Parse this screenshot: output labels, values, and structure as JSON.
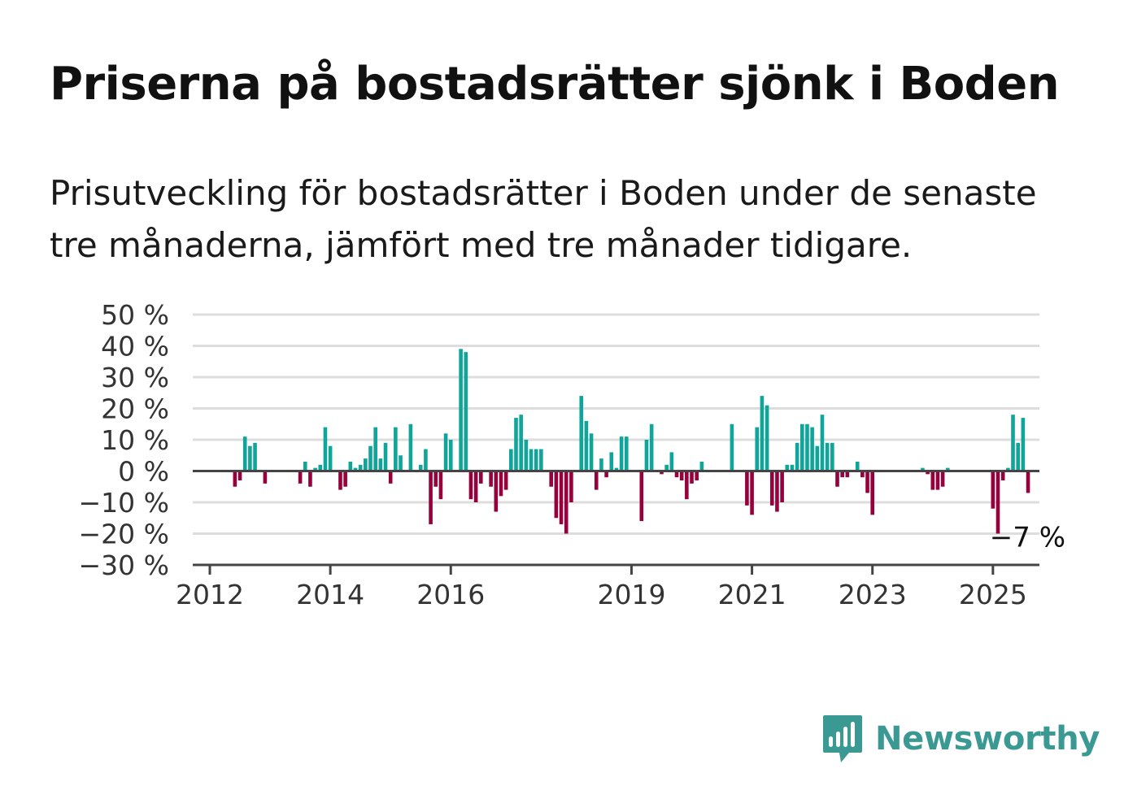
{
  "header": {
    "title": "Priserna på bostadsrätter sjönk i Boden",
    "subtitle": "Prisutveckling för bostadsrätter i Boden under de senaste tre månaderna, jämfört med tre månader tidigare."
  },
  "branding": {
    "name": "Newsworthy",
    "icon": "newsworthy-logo-icon",
    "color": "#3a9a93"
  },
  "colors": {
    "positive": "#0fa59a",
    "negative": "#96003c",
    "grid": "#dddddd",
    "axis": "#444444"
  },
  "chart_data": {
    "type": "bar",
    "title": "",
    "xlabel": "",
    "ylabel": "",
    "ylim": [
      -30,
      50
    ],
    "y_ticks": [
      "50 %",
      "40 %",
      "30 %",
      "20 %",
      "10 %",
      "0 %",
      "−10 %",
      "−20 %",
      "−30 %"
    ],
    "y_tick_values": [
      50,
      40,
      30,
      20,
      10,
      0,
      -10,
      -20,
      -30
    ],
    "x_ticks": [
      "2012",
      "2014",
      "2016",
      "2019",
      "2021",
      "2023",
      "2025"
    ],
    "x_tick_values": [
      "2012-01",
      "2014-01",
      "2016-01",
      "2019-01",
      "2021-01",
      "2023-01",
      "2025-01"
    ],
    "grid": true,
    "annotation": {
      "text": "−7 %",
      "date": "2025-01",
      "value": -7
    },
    "series": [
      {
        "start": "2012-01",
        "frequency": "monthly",
        "unit": "%",
        "values": [
          null,
          null,
          null,
          null,
          null,
          -5,
          -3,
          11,
          8,
          9,
          null,
          -4,
          null,
          null,
          null,
          null,
          null,
          null,
          -4,
          3,
          -5,
          1,
          2,
          14,
          8,
          null,
          -6,
          -5,
          3,
          1,
          2,
          4,
          8,
          14,
          4,
          9,
          -4,
          14,
          5,
          null,
          15,
          null,
          2,
          7,
          -17,
          -5,
          -9,
          12,
          10,
          null,
          39,
          38,
          -9,
          -10,
          -4,
          null,
          -5,
          -13,
          -8,
          -6,
          7,
          17,
          18,
          10,
          7,
          7,
          7,
          null,
          -5,
          -15,
          -17,
          -20,
          -10,
          null,
          24,
          16,
          12,
          -6,
          4,
          -2,
          6,
          1,
          11,
          11,
          null,
          null,
          -16,
          10,
          15,
          null,
          -1,
          2,
          6,
          -2,
          -3,
          -9,
          -4,
          -3,
          3,
          null,
          null,
          null,
          null,
          null,
          15,
          null,
          null,
          -11,
          -14,
          14,
          24,
          21,
          -11,
          -13,
          -10,
          2,
          2,
          9,
          15,
          15,
          14,
          8,
          18,
          9,
          9,
          -5,
          -2,
          -2,
          null,
          3,
          -2,
          -7,
          -14,
          null,
          null,
          null,
          null,
          null,
          null,
          null,
          null,
          null,
          1,
          -1,
          -6,
          -6,
          -5,
          1,
          null,
          null,
          null,
          null,
          null,
          null,
          null,
          null,
          -12,
          -20,
          -3,
          1,
          18,
          9,
          17,
          -7
        ]
      }
    ]
  }
}
